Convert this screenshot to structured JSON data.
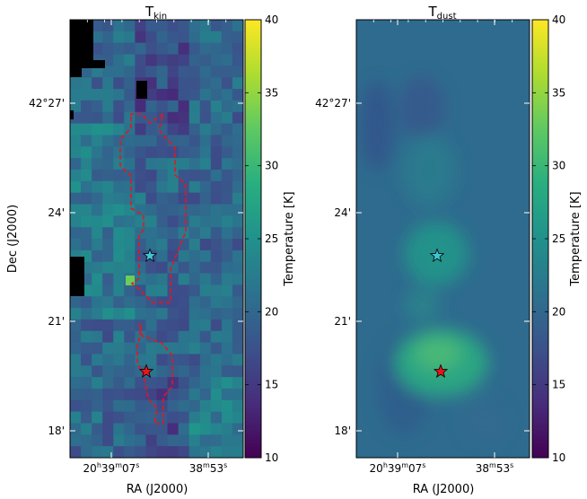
{
  "chart_data": [
    {
      "type": "heatmap",
      "title": "T",
      "title_subscript": "kin",
      "xlabel": "RA (J2000)",
      "ylabel": "Dec (J2000)",
      "x_tick_labels": [
        "20h39m07s",
        "38m53s"
      ],
      "x_tick_parts": [
        [
          "20",
          "h",
          "39",
          "m",
          "07",
          "s"
        ],
        [
          "38",
          "m",
          "53",
          "s"
        ]
      ],
      "y_tick_labels": [
        "42°27'",
        "24'",
        "21'",
        "18'"
      ],
      "colorbar": {
        "label": "Temperature [K]",
        "min": 10,
        "max": 40,
        "ticks": [
          10,
          15,
          20,
          25,
          30,
          35,
          40
        ],
        "colormap": "viridis"
      },
      "markers": [
        {
          "name": "cyan-star",
          "color": "#3ec6d6",
          "shape": "star"
        },
        {
          "name": "red-star",
          "color": "#e8161b",
          "shape": "star"
        }
      ],
      "contour": {
        "color": "#e8161b",
        "style": "dashed"
      },
      "masked_color": "#000000"
    },
    {
      "type": "heatmap",
      "title": "T",
      "title_subscript": "dust",
      "xlabel": "RA (J2000)",
      "ylabel": "",
      "x_tick_labels": [
        "20h39m07s",
        "38m53s"
      ],
      "x_tick_parts": [
        [
          "20",
          "h",
          "39",
          "m",
          "07",
          "s"
        ],
        [
          "38",
          "m",
          "53",
          "s"
        ]
      ],
      "y_tick_labels": [
        "42°27'",
        "24'",
        "21'",
        "18'"
      ],
      "colorbar": {
        "label": "Temperature [K]",
        "min": 10,
        "max": 40,
        "ticks": [
          10,
          15,
          20,
          25,
          30,
          35,
          40
        ],
        "colormap": "viridis"
      },
      "markers": [
        {
          "name": "cyan-star",
          "color": "#3ec6d6",
          "shape": "star"
        },
        {
          "name": "red-star",
          "color": "#e8161b",
          "shape": "star"
        }
      ]
    }
  ]
}
